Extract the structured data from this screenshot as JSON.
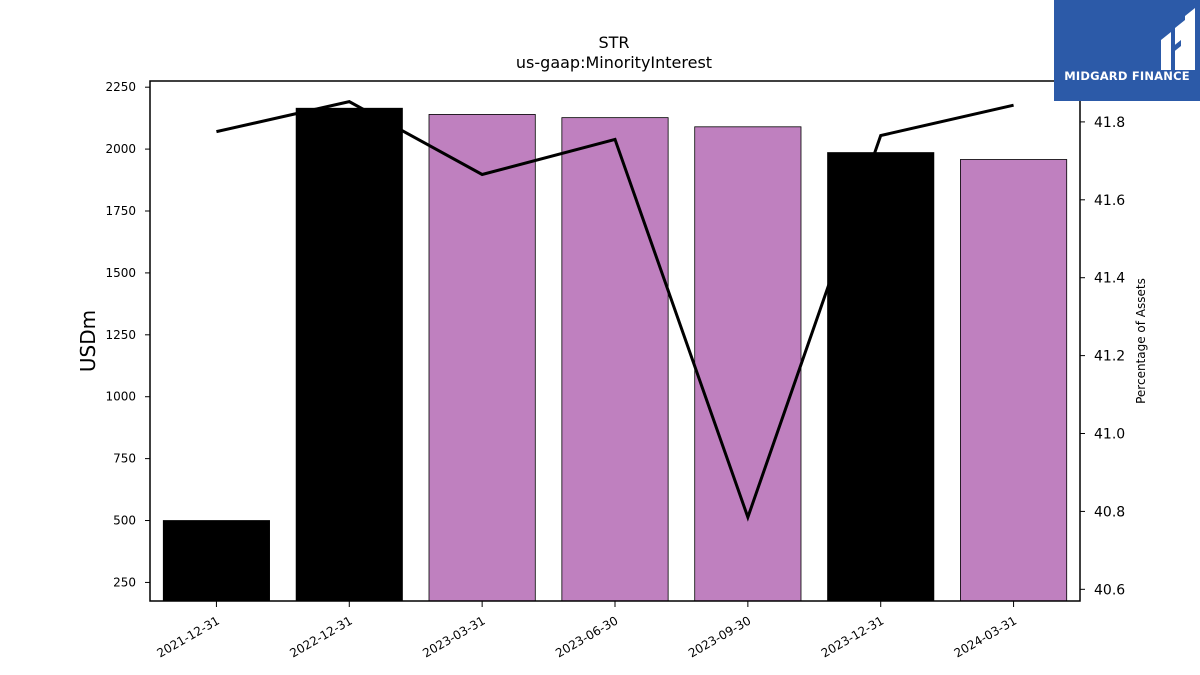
{
  "chart_data": {
    "type": "bar",
    "title": "STR",
    "subtitle": "us-gaap:MinorityInterest",
    "ylabel": "USDm",
    "y2label": "Percentage of Assets",
    "categories": [
      "2021-12-31",
      "2022-12-31",
      "2023-03-31",
      "2023-06-30",
      "2023-09-30",
      "2023-12-31",
      "2024-03-31"
    ],
    "series": [
      {
        "type": "bar",
        "values": [
          500,
          2165,
          2140,
          2127,
          2090,
          1986,
          1958
        ],
        "colors": [
          "#000000",
          "#000000",
          "#bf80bf",
          "#bf80bf",
          "#bf80bf",
          "#000000",
          "#bf80bf"
        ]
      },
      {
        "type": "line",
        "axis": "right",
        "values": [
          41.775,
          41.852,
          41.665,
          41.755,
          40.785,
          41.765,
          41.843
        ],
        "color": "#000000"
      }
    ],
    "ylim": [
      175,
      2275
    ],
    "yticks": [
      250,
      500,
      750,
      1000,
      1250,
      1500,
      1750,
      2000,
      2250
    ],
    "y2lim": [
      40.57,
      41.905
    ],
    "y2ticks": [
      "40.6",
      "40.8",
      "41.0",
      "41.2",
      "41.4",
      "41.6",
      "41.8"
    ],
    "grid": false
  },
  "logo": {
    "text": "MIDGARD FINANCE",
    "background": "#2c5aa8"
  }
}
